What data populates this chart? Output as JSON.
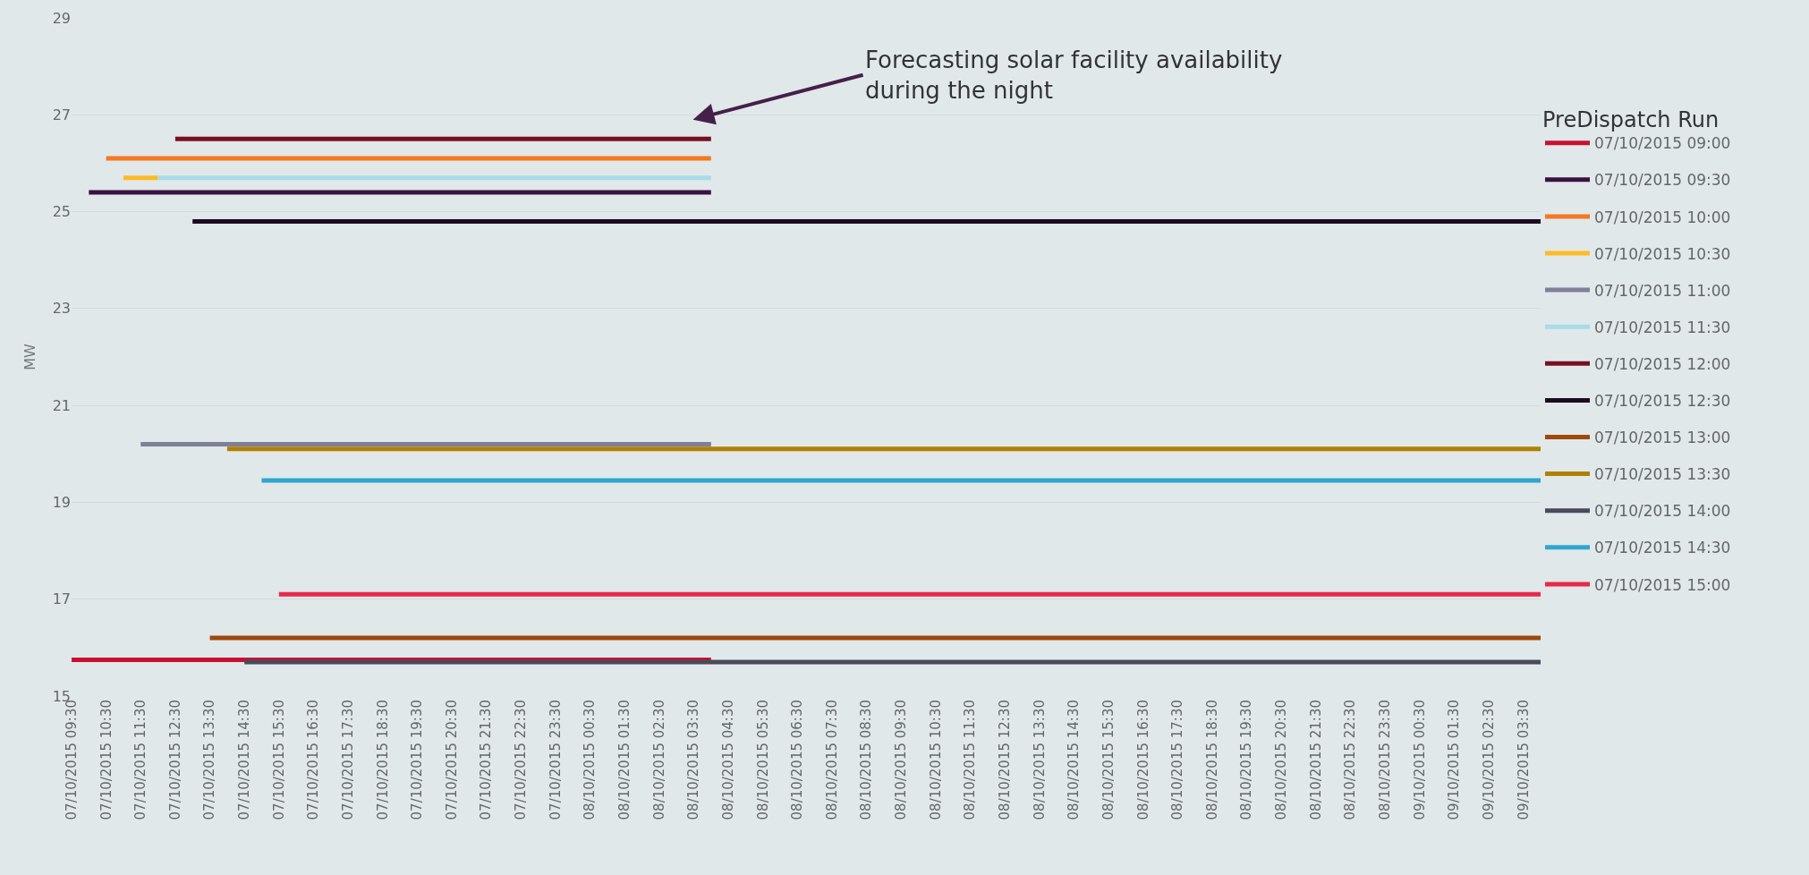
{
  "chart_data": {
    "type": "line",
    "ylabel": "MW",
    "legend_title": "PreDispatch Run",
    "legend": "right",
    "grid": "y",
    "marker": "none",
    "line_style": "solid",
    "xlim": [
      "2015-10-07T09:30",
      "2015-10-09T04:00"
    ],
    "ylim": [
      15,
      29
    ],
    "yticks": [
      15,
      17,
      19,
      21,
      23,
      25,
      27,
      29
    ],
    "xticks": [
      {
        "value": "2015-10-07T09:30",
        "label": "07/10/2015 09:30"
      },
      {
        "value": "2015-10-07T10:30",
        "label": "07/10/2015 10:30"
      },
      {
        "value": "2015-10-07T11:30",
        "label": "07/10/2015 11:30"
      },
      {
        "value": "2015-10-07T12:30",
        "label": "07/10/2015 12:30"
      },
      {
        "value": "2015-10-07T13:30",
        "label": "07/10/2015 13:30"
      },
      {
        "value": "2015-10-07T14:30",
        "label": "07/10/2015 14:30"
      },
      {
        "value": "2015-10-07T15:30",
        "label": "07/10/2015 15:30"
      },
      {
        "value": "2015-10-07T16:30",
        "label": "07/10/2015 16:30"
      },
      {
        "value": "2015-10-07T17:30",
        "label": "07/10/2015 17:30"
      },
      {
        "value": "2015-10-07T18:30",
        "label": "07/10/2015 18:30"
      },
      {
        "value": "2015-10-07T19:30",
        "label": "07/10/2015 19:30"
      },
      {
        "value": "2015-10-07T20:30",
        "label": "07/10/2015 20:30"
      },
      {
        "value": "2015-10-07T21:30",
        "label": "07/10/2015 21:30"
      },
      {
        "value": "2015-10-07T22:30",
        "label": "07/10/2015 22:30"
      },
      {
        "value": "2015-10-07T23:30",
        "label": "07/10/2015 23:30"
      },
      {
        "value": "2015-10-08T00:30",
        "label": "08/10/2015 00:30"
      },
      {
        "value": "2015-10-08T01:30",
        "label": "08/10/2015 01:30"
      },
      {
        "value": "2015-10-08T02:30",
        "label": "08/10/2015 02:30"
      },
      {
        "value": "2015-10-08T03:30",
        "label": "08/10/2015 03:30"
      },
      {
        "value": "2015-10-08T04:30",
        "label": "08/10/2015 04:30"
      },
      {
        "value": "2015-10-08T05:30",
        "label": "08/10/2015 05:30"
      },
      {
        "value": "2015-10-08T06:30",
        "label": "08/10/2015 06:30"
      },
      {
        "value": "2015-10-08T07:30",
        "label": "08/10/2015 07:30"
      },
      {
        "value": "2015-10-08T08:30",
        "label": "08/10/2015 08:30"
      },
      {
        "value": "2015-10-08T09:30",
        "label": "08/10/2015 09:30"
      },
      {
        "value": "2015-10-08T10:30",
        "label": "08/10/2015 10:30"
      },
      {
        "value": "2015-10-08T11:30",
        "label": "08/10/2015 11:30"
      },
      {
        "value": "2015-10-08T12:30",
        "label": "08/10/2015 12:30"
      },
      {
        "value": "2015-10-08T13:30",
        "label": "08/10/2015 13:30"
      },
      {
        "value": "2015-10-08T14:30",
        "label": "08/10/2015 14:30"
      },
      {
        "value": "2015-10-08T15:30",
        "label": "08/10/2015 15:30"
      },
      {
        "value": "2015-10-08T16:30",
        "label": "08/10/2015 16:30"
      },
      {
        "value": "2015-10-08T17:30",
        "label": "08/10/2015 17:30"
      },
      {
        "value": "2015-10-08T18:30",
        "label": "08/10/2015 18:30"
      },
      {
        "value": "2015-10-08T19:30",
        "label": "08/10/2015 19:30"
      },
      {
        "value": "2015-10-08T20:30",
        "label": "08/10/2015 20:30"
      },
      {
        "value": "2015-10-08T21:30",
        "label": "08/10/2015 21:30"
      },
      {
        "value": "2015-10-08T22:30",
        "label": "08/10/2015 22:30"
      },
      {
        "value": "2015-10-08T23:30",
        "label": "08/10/2015 23:30"
      },
      {
        "value": "2015-10-09T00:30",
        "label": "09/10/2015 00:30"
      },
      {
        "value": "2015-10-09T01:30",
        "label": "09/10/2015 01:30"
      },
      {
        "value": "2015-10-09T02:30",
        "label": "09/10/2015 02:30"
      },
      {
        "value": "2015-10-09T03:30",
        "label": "09/10/2015 03:30"
      }
    ],
    "annotations": [
      "Forecasting solar facility availability\nduring the night"
    ],
    "series": [
      {
        "name": "07/10/2015 09:00",
        "color": "#c8102e",
        "x": [
          "2015-10-07T09:30",
          "2015-10-08T04:00"
        ],
        "values": [
          15.75,
          15.75
        ]
      },
      {
        "name": "07/10/2015 09:30",
        "color": "#3c1040",
        "x": [
          "2015-10-07T10:00",
          "2015-10-08T04:00"
        ],
        "values": [
          25.4,
          25.4
        ]
      },
      {
        "name": "07/10/2015 10:00",
        "color": "#f47920",
        "x": [
          "2015-10-07T10:30",
          "2015-10-08T04:00"
        ],
        "values": [
          26.1,
          26.1
        ]
      },
      {
        "name": "07/10/2015 10:30",
        "color": "#fdbb24",
        "x": [
          "2015-10-07T11:00",
          "2015-10-07T12:00"
        ],
        "values": [
          25.7,
          25.7
        ]
      },
      {
        "name": "07/10/2015 11:00",
        "color": "#7f7f99",
        "x": [
          "2015-10-07T11:30",
          "2015-10-08T04:00"
        ],
        "values": [
          20.2,
          20.2
        ]
      },
      {
        "name": "07/10/2015 11:30",
        "color": "#a8dbe8",
        "x": [
          "2015-10-07T12:00",
          "2015-10-08T04:00"
        ],
        "values": [
          25.7,
          25.7
        ]
      },
      {
        "name": "07/10/2015 12:00",
        "color": "#7a0f22",
        "x": [
          "2015-10-07T12:30",
          "2015-10-08T04:00"
        ],
        "values": [
          26.5,
          26.5
        ]
      },
      {
        "name": "07/10/2015 12:30",
        "color": "#1e0a1e",
        "x": [
          "2015-10-07T13:00",
          "2015-10-09T04:00"
        ],
        "values": [
          24.8,
          24.8
        ]
      },
      {
        "name": "07/10/2015 13:00",
        "color": "#a0470c",
        "x": [
          "2015-10-07T13:30",
          "2015-10-09T04:00"
        ],
        "values": [
          16.2,
          16.2
        ]
      },
      {
        "name": "07/10/2015 13:30",
        "color": "#b08000",
        "x": [
          "2015-10-07T14:00",
          "2015-10-09T04:00"
        ],
        "values": [
          20.1,
          20.1
        ]
      },
      {
        "name": "07/10/2015 14:00",
        "color": "#4a4a5c",
        "x": [
          "2015-10-07T14:30",
          "2015-10-09T04:00"
        ],
        "values": [
          15.7,
          15.7
        ]
      },
      {
        "name": "07/10/2015 14:30",
        "color": "#2ea6cf",
        "x": [
          "2015-10-07T15:00",
          "2015-10-09T04:00"
        ],
        "values": [
          19.45,
          19.45
        ]
      },
      {
        "name": "07/10/2015 15:00",
        "color": "#e8294a",
        "x": [
          "2015-10-07T15:30",
          "2015-10-09T04:00"
        ],
        "values": [
          17.1,
          17.1
        ]
      }
    ]
  }
}
